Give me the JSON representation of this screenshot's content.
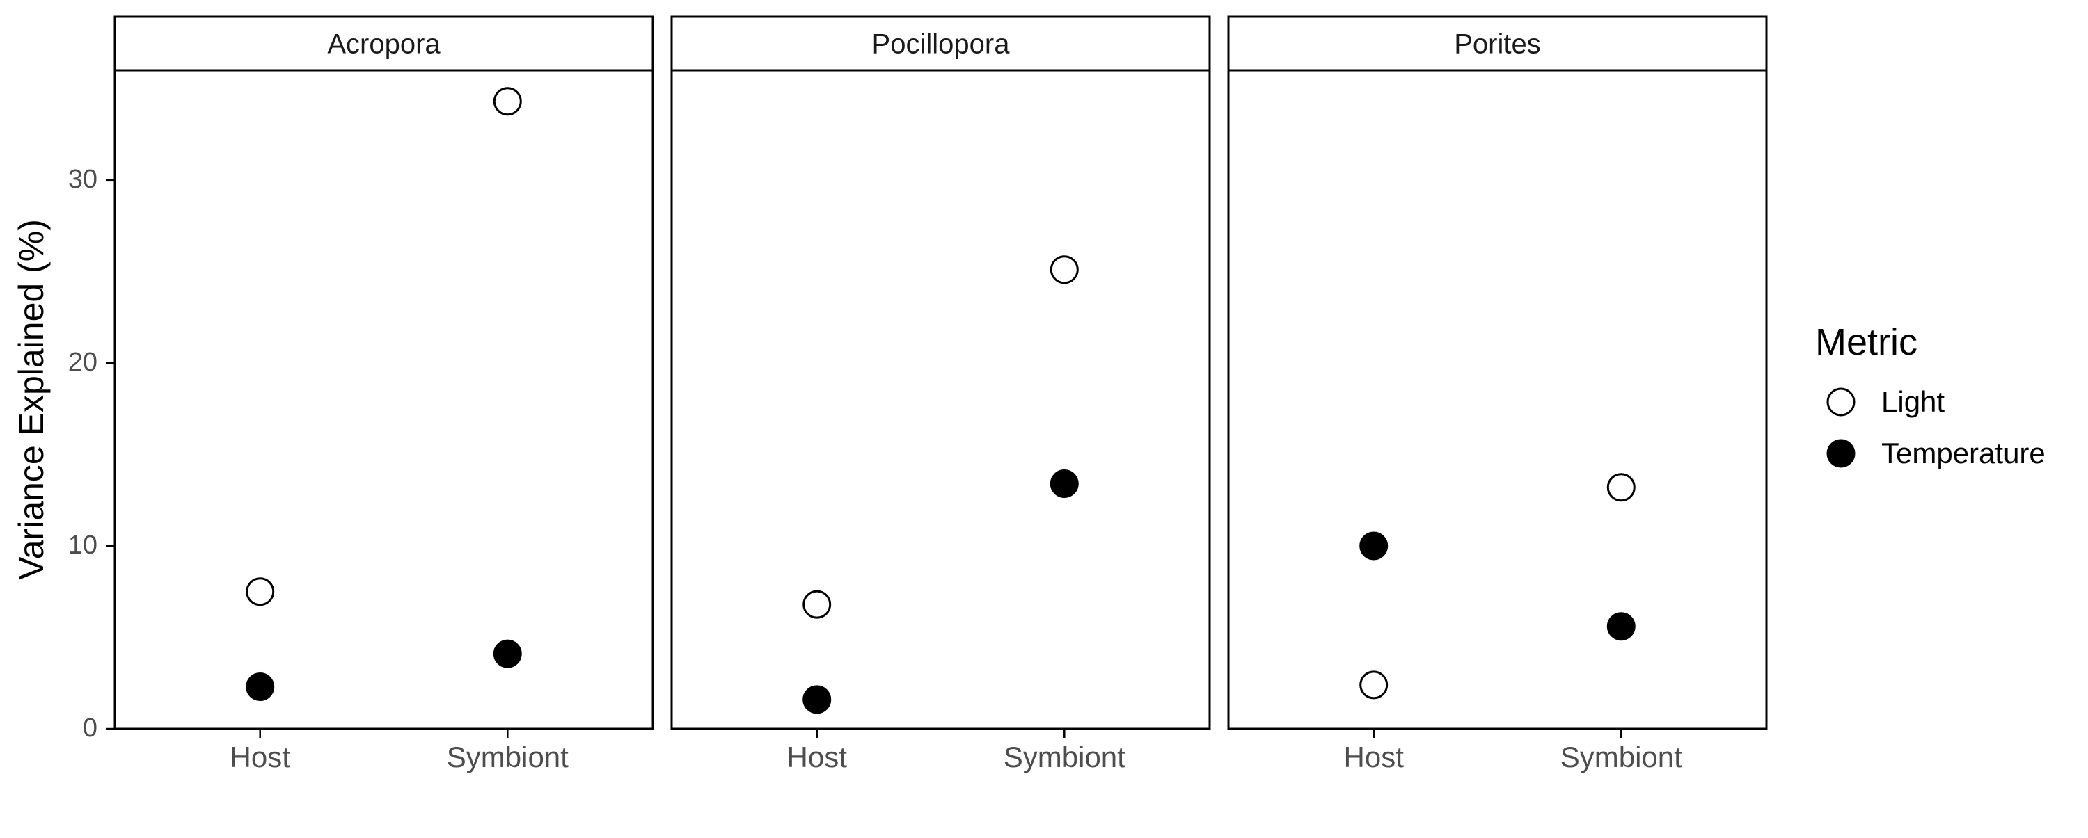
{
  "chart_data": {
    "type": "scatter",
    "ylabel": "Variance Explained (%)",
    "xlabel": "",
    "ylim": [
      0,
      36
    ],
    "yticks": [
      0,
      10,
      20,
      30
    ],
    "categories": [
      "Host",
      "Symbiont"
    ],
    "facets": [
      {
        "label": "Acropora",
        "series": [
          {
            "name": "Light",
            "values": [
              7.5,
              34.3
            ]
          },
          {
            "name": "Temperature",
            "values": [
              2.3,
              4.1
            ]
          }
        ]
      },
      {
        "label": "Pocillopora",
        "series": [
          {
            "name": "Light",
            "values": [
              6.8,
              25.1
            ]
          },
          {
            "name": "Temperature",
            "values": [
              1.6,
              13.4
            ]
          }
        ]
      },
      {
        "label": "Porites",
        "series": [
          {
            "name": "Light",
            "values": [
              2.4,
              13.2
            ]
          },
          {
            "name": "Temperature",
            "values": [
              10.0,
              5.6
            ]
          }
        ]
      }
    ],
    "legend": {
      "title": "Metric",
      "position": "right",
      "items": [
        {
          "name": "Light",
          "marker": "open-circle",
          "color": "#000000"
        },
        {
          "name": "Temperature",
          "marker": "filled-circle",
          "color": "#000000"
        }
      ]
    },
    "grid": false
  }
}
